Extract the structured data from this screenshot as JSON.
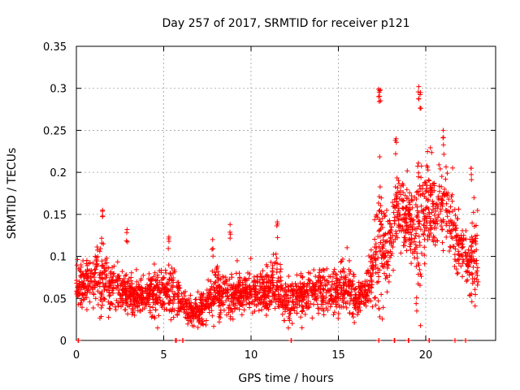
{
  "chart_data": {
    "type": "scatter",
    "title": "Day 257 of 2017, SRMTID for receiver p121",
    "xlabel": "GPS time / hours",
    "ylabel": "SRMTID / TECUs",
    "xlim": [
      0,
      24
    ],
    "ylim": [
      0,
      0.35
    ],
    "xticks": [
      0,
      5,
      10,
      15,
      20
    ],
    "yticks": [
      0,
      0.05,
      0.1,
      0.15,
      0.2,
      0.25,
      0.3,
      0.35
    ],
    "xtick_labels": [
      "0",
      "5",
      "10",
      "15",
      "20"
    ],
    "ytick_labels": [
      "0",
      "0.05",
      "0.1",
      "0.15",
      "0.2",
      "0.25",
      "0.3",
      "0.35"
    ],
    "grid": true,
    "marker": "+",
    "marker_color": "#ff0000",
    "zero_value_x": [
      0.1,
      5.7,
      6.1,
      12.3,
      17.3,
      18.2,
      19.0,
      20.2,
      21.7,
      22.3
    ],
    "envelope": {
      "x": [
        0,
        1,
        1.5,
        2,
        2.5,
        3,
        4,
        5,
        5.5,
        6,
        6.5,
        7,
        7.5,
        8,
        8.5,
        9,
        10,
        11,
        11.5,
        12,
        12.5,
        13,
        14,
        15,
        15.5,
        16,
        16.5,
        17,
        17.3,
        17.8,
        18.3,
        18.8,
        19.3,
        19.6,
        20,
        20.5,
        21,
        21.5,
        22,
        22.5,
        23
      ],
      "median": [
        0.065,
        0.07,
        0.08,
        0.065,
        0.06,
        0.055,
        0.055,
        0.06,
        0.06,
        0.045,
        0.035,
        0.035,
        0.045,
        0.06,
        0.055,
        0.055,
        0.055,
        0.06,
        0.065,
        0.045,
        0.05,
        0.055,
        0.06,
        0.06,
        0.065,
        0.05,
        0.055,
        0.08,
        0.12,
        0.11,
        0.15,
        0.14,
        0.13,
        0.12,
        0.17,
        0.15,
        0.16,
        0.14,
        0.11,
        0.09,
        0.1
      ],
      "spread": [
        0.02,
        0.03,
        0.04,
        0.025,
        0.025,
        0.02,
        0.02,
        0.025,
        0.03,
        0.015,
        0.015,
        0.015,
        0.02,
        0.025,
        0.025,
        0.02,
        0.02,
        0.025,
        0.03,
        0.02,
        0.02,
        0.025,
        0.025,
        0.025,
        0.03,
        0.02,
        0.02,
        0.04,
        0.08,
        0.04,
        0.04,
        0.035,
        0.045,
        0.08,
        0.05,
        0.04,
        0.045,
        0.04,
        0.03,
        0.03,
        0.05
      ]
    },
    "peaks": [
      {
        "x": 1.5,
        "y": 0.155
      },
      {
        "x": 2.9,
        "y": 0.132
      },
      {
        "x": 5.3,
        "y": 0.123
      },
      {
        "x": 7.8,
        "y": 0.12
      },
      {
        "x": 8.8,
        "y": 0.138
      },
      {
        "x": 11.5,
        "y": 0.141
      },
      {
        "x": 17.3,
        "y": 0.299
      },
      {
        "x": 17.4,
        "y": 0.298
      },
      {
        "x": 18.3,
        "y": 0.24
      },
      {
        "x": 19.6,
        "y": 0.302
      },
      {
        "x": 19.7,
        "y": 0.295
      },
      {
        "x": 21.0,
        "y": 0.25
      },
      {
        "x": 22.6,
        "y": 0.205
      }
    ],
    "point_count": 2600,
    "seed": 257
  }
}
